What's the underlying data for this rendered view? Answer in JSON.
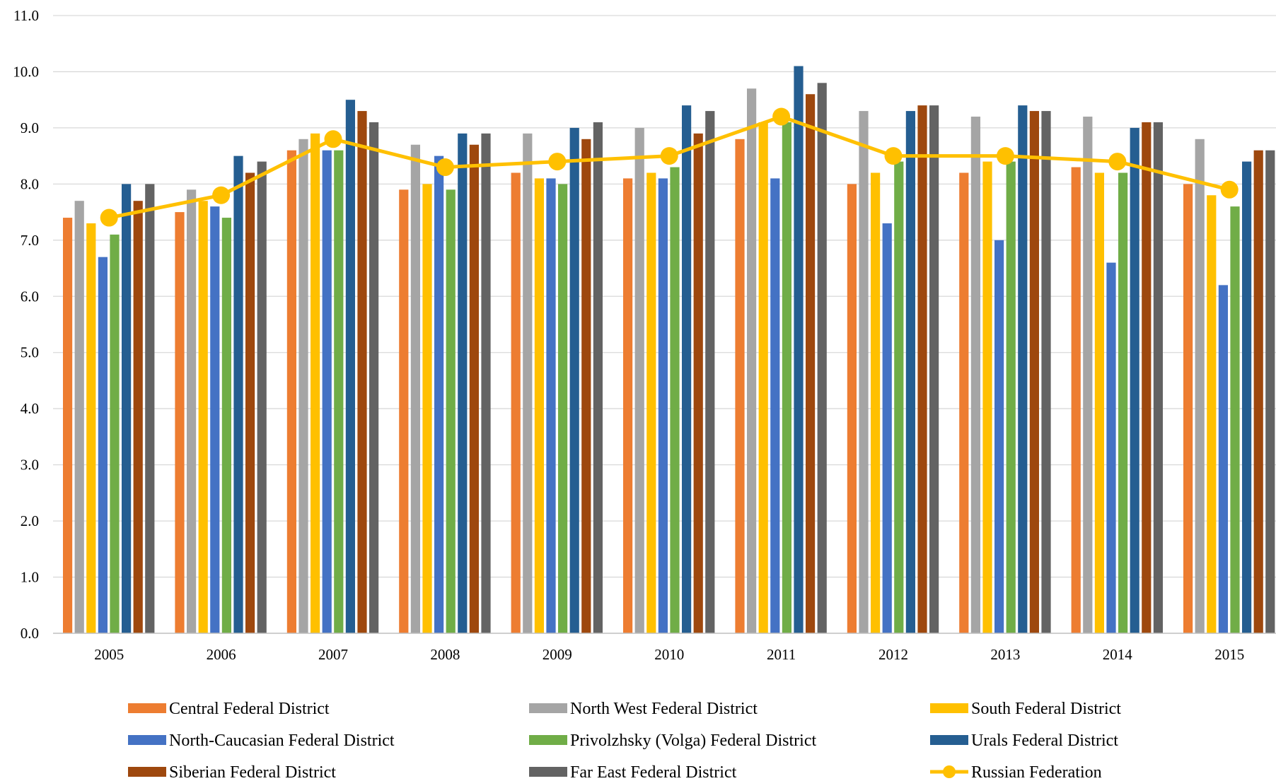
{
  "chart_data": {
    "type": "bar",
    "overlay_type": "line",
    "categories": [
      "2005",
      "2006",
      "2007",
      "2008",
      "2009",
      "2010",
      "2011",
      "2012",
      "2013",
      "2014",
      "2015"
    ],
    "ylim": [
      0,
      11
    ],
    "yticks": [
      "0.0",
      "1.0",
      "2.0",
      "3.0",
      "4.0",
      "5.0",
      "6.0",
      "7.0",
      "8.0",
      "9.0",
      "10.0",
      "11.0"
    ],
    "grid": true,
    "legend_position": "bottom",
    "series": [
      {
        "name": "Central Federal District",
        "color": "#ED7D31",
        "values": [
          7.4,
          7.5,
          8.6,
          7.9,
          8.2,
          8.1,
          8.8,
          8.0,
          8.2,
          8.3,
          8.0
        ]
      },
      {
        "name": "North West Federal District",
        "color": "#A5A5A5",
        "values": [
          7.7,
          7.9,
          8.8,
          8.7,
          8.9,
          9.0,
          9.7,
          9.3,
          9.2,
          9.2,
          8.8
        ]
      },
      {
        "name": "South Federal District",
        "color": "#FFC000",
        "values": [
          7.3,
          7.7,
          8.9,
          8.0,
          8.1,
          8.2,
          9.1,
          8.2,
          8.4,
          8.2,
          7.8
        ]
      },
      {
        "name": "North-Caucasian Federal District",
        "color": "#4472C4",
        "values": [
          6.7,
          7.6,
          8.6,
          8.5,
          8.1,
          8.1,
          8.1,
          7.3,
          7.0,
          6.6,
          6.2
        ]
      },
      {
        "name": "Privolzhsky (Volga) Federal District",
        "color": "#70AD47",
        "values": [
          7.1,
          7.4,
          8.6,
          7.9,
          8.0,
          8.3,
          9.1,
          8.4,
          8.4,
          8.2,
          7.6
        ]
      },
      {
        "name": "Urals Federal District",
        "color": "#255E91",
        "values": [
          8.0,
          8.5,
          9.5,
          8.9,
          9.0,
          9.4,
          10.1,
          9.3,
          9.4,
          9.0,
          8.4
        ]
      },
      {
        "name": "Siberian Federal District",
        "color": "#9E480E",
        "values": [
          7.7,
          8.2,
          9.3,
          8.7,
          8.8,
          8.9,
          9.6,
          9.4,
          9.3,
          9.1,
          8.6
        ]
      },
      {
        "name": "Far East Federal District",
        "color": "#636363",
        "values": [
          8.0,
          8.4,
          9.1,
          8.9,
          9.1,
          9.3,
          9.8,
          9.4,
          9.3,
          9.1,
          8.6
        ]
      }
    ],
    "line_series": {
      "name": "Russian Federation",
      "color": "#FFC000",
      "values": [
        7.4,
        7.8,
        8.8,
        8.3,
        8.4,
        8.5,
        9.2,
        8.5,
        8.5,
        8.4,
        7.9
      ]
    }
  }
}
